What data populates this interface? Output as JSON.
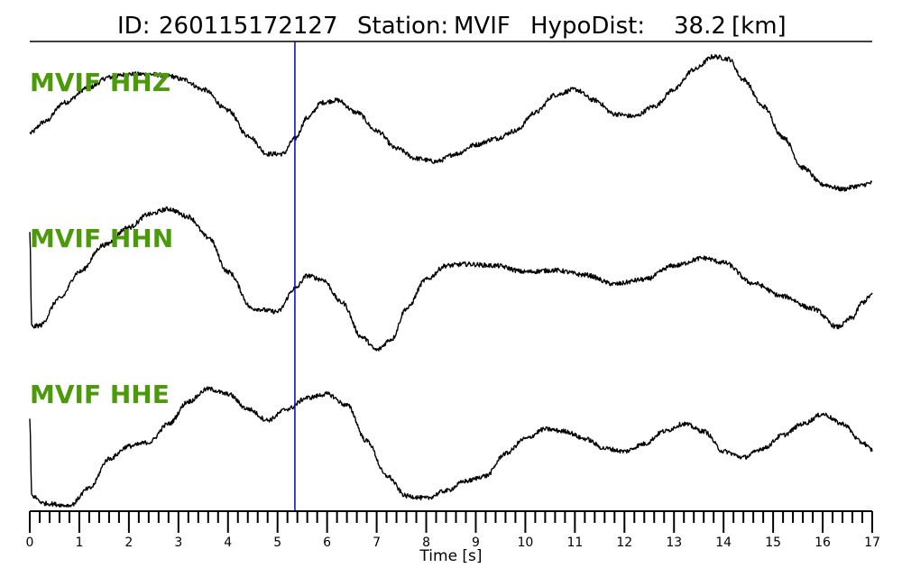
{
  "title": {
    "id_label": "ID:",
    "id_value": "260115172127",
    "station_label": "Station:",
    "station_value": "MVIF",
    "hypodist_label": "HypoDist:",
    "hypodist_value": "38.2",
    "hypodist_unit": "[km]"
  },
  "colors": {
    "trace": "#000000",
    "label": "#4a9a0a",
    "pick_marker": "#0000cc",
    "axis": "#000000"
  },
  "chart_data": {
    "type": "line",
    "xlabel": "Time [s]",
    "xlim": [
      0,
      17
    ],
    "x_major_ticks": [
      0,
      1,
      2,
      3,
      4,
      5,
      6,
      7,
      8,
      9,
      10,
      11,
      12,
      13,
      14,
      15,
      16,
      17
    ],
    "x_minor_step": 0.2,
    "pick_time": 5.35,
    "amplitude_range": [
      -1,
      1
    ],
    "grid": false,
    "series": [
      {
        "name": "MVIF HHZ",
        "noise": 0.03,
        "points": [
          [
            0,
            -0.15
          ],
          [
            0.3,
            0.0
          ],
          [
            0.7,
            0.25
          ],
          [
            1.2,
            0.45
          ],
          [
            1.6,
            0.58
          ],
          [
            2.0,
            0.62
          ],
          [
            2.4,
            0.62
          ],
          [
            2.8,
            0.6
          ],
          [
            3.1,
            0.55
          ],
          [
            3.5,
            0.42
          ],
          [
            4.0,
            0.15
          ],
          [
            4.4,
            -0.18
          ],
          [
            4.8,
            -0.42
          ],
          [
            5.1,
            -0.42
          ],
          [
            5.35,
            -0.22
          ],
          [
            5.6,
            0.05
          ],
          [
            5.9,
            0.25
          ],
          [
            6.2,
            0.28
          ],
          [
            6.6,
            0.12
          ],
          [
            7.0,
            -0.12
          ],
          [
            7.4,
            -0.35
          ],
          [
            7.8,
            -0.48
          ],
          [
            8.2,
            -0.52
          ],
          [
            8.6,
            -0.42
          ],
          [
            9.0,
            -0.3
          ],
          [
            9.4,
            -0.22
          ],
          [
            9.8,
            -0.12
          ],
          [
            10.2,
            0.12
          ],
          [
            10.6,
            0.35
          ],
          [
            11.0,
            0.42
          ],
          [
            11.4,
            0.28
          ],
          [
            11.8,
            0.1
          ],
          [
            12.2,
            0.07
          ],
          [
            12.6,
            0.2
          ],
          [
            13.0,
            0.42
          ],
          [
            13.4,
            0.68
          ],
          [
            13.8,
            0.85
          ],
          [
            14.1,
            0.82
          ],
          [
            14.4,
            0.55
          ],
          [
            14.8,
            0.2
          ],
          [
            15.2,
            -0.2
          ],
          [
            15.6,
            -0.6
          ],
          [
            16.0,
            -0.82
          ],
          [
            16.4,
            -0.88
          ],
          [
            16.7,
            -0.84
          ],
          [
            17.0,
            -0.8
          ]
        ]
      },
      {
        "name": "MVIF HHN",
        "noise": 0.03,
        "points": [
          [
            0,
            0.62
          ],
          [
            0.04,
            -0.62
          ],
          [
            0.2,
            -0.6
          ],
          [
            0.6,
            -0.25
          ],
          [
            1.0,
            0.1
          ],
          [
            1.5,
            0.45
          ],
          [
            2.0,
            0.68
          ],
          [
            2.4,
            0.85
          ],
          [
            2.8,
            0.92
          ],
          [
            3.2,
            0.82
          ],
          [
            3.6,
            0.55
          ],
          [
            4.0,
            0.1
          ],
          [
            4.5,
            -0.38
          ],
          [
            5.0,
            -0.42
          ],
          [
            5.35,
            -0.12
          ],
          [
            5.6,
            0.05
          ],
          [
            5.9,
            0.0
          ],
          [
            6.3,
            -0.3
          ],
          [
            6.7,
            -0.75
          ],
          [
            7.0,
            -0.92
          ],
          [
            7.3,
            -0.78
          ],
          [
            7.6,
            -0.38
          ],
          [
            8.0,
            0.0
          ],
          [
            8.4,
            0.18
          ],
          [
            8.8,
            0.2
          ],
          [
            9.4,
            0.18
          ],
          [
            10.0,
            0.1
          ],
          [
            10.6,
            0.12
          ],
          [
            11.2,
            0.06
          ],
          [
            11.8,
            -0.06
          ],
          [
            12.4,
            0.0
          ],
          [
            13.0,
            0.18
          ],
          [
            13.6,
            0.28
          ],
          [
            14.0,
            0.22
          ],
          [
            14.6,
            -0.05
          ],
          [
            15.2,
            -0.22
          ],
          [
            15.8,
            -0.38
          ],
          [
            16.3,
            -0.62
          ],
          [
            16.6,
            -0.5
          ],
          [
            16.8,
            -0.3
          ],
          [
            17.0,
            -0.2
          ]
        ]
      },
      {
        "name": "MVIF HHE",
        "noise": 0.03,
        "points": [
          [
            0,
            0.22
          ],
          [
            0.04,
            -0.82
          ],
          [
            0.3,
            -0.92
          ],
          [
            0.8,
            -0.95
          ],
          [
            1.2,
            -0.72
          ],
          [
            1.6,
            -0.32
          ],
          [
            2.0,
            -0.15
          ],
          [
            2.4,
            -0.1
          ],
          [
            2.8,
            0.15
          ],
          [
            3.2,
            0.45
          ],
          [
            3.6,
            0.62
          ],
          [
            4.0,
            0.55
          ],
          [
            4.4,
            0.35
          ],
          [
            4.8,
            0.2
          ],
          [
            5.2,
            0.35
          ],
          [
            5.6,
            0.5
          ],
          [
            6.0,
            0.55
          ],
          [
            6.4,
            0.4
          ],
          [
            6.8,
            -0.08
          ],
          [
            7.2,
            -0.55
          ],
          [
            7.6,
            -0.82
          ],
          [
            8.0,
            -0.85
          ],
          [
            8.4,
            -0.75
          ],
          [
            8.8,
            -0.62
          ],
          [
            9.2,
            -0.55
          ],
          [
            9.6,
            -0.25
          ],
          [
            10.0,
            -0.05
          ],
          [
            10.4,
            0.08
          ],
          [
            10.8,
            0.05
          ],
          [
            11.2,
            -0.05
          ],
          [
            11.6,
            -0.18
          ],
          [
            12.0,
            -0.22
          ],
          [
            12.4,
            -0.12
          ],
          [
            12.8,
            0.05
          ],
          [
            13.2,
            0.15
          ],
          [
            13.6,
            0.05
          ],
          [
            14.0,
            -0.22
          ],
          [
            14.4,
            -0.3
          ],
          [
            14.8,
            -0.18
          ],
          [
            15.2,
            0.0
          ],
          [
            15.6,
            0.15
          ],
          [
            16.0,
            0.28
          ],
          [
            16.4,
            0.15
          ],
          [
            16.8,
            -0.1
          ],
          [
            17.0,
            -0.2
          ]
        ]
      }
    ]
  }
}
